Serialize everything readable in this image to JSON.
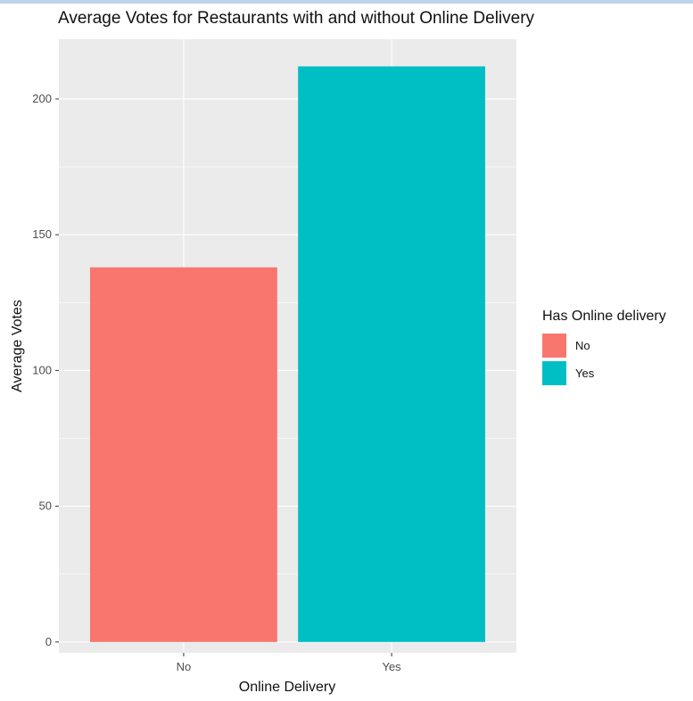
{
  "chart_data": {
    "type": "bar",
    "title": "Average Votes for Restaurants with and without Online Delivery",
    "xlabel": "Online Delivery",
    "ylabel": "Average Votes",
    "categories": [
      "No",
      "Yes"
    ],
    "values": [
      138,
      212
    ],
    "colors": [
      "#F8766D",
      "#00BFC4"
    ],
    "ylim": [
      -4,
      222
    ],
    "yticks": [
      0,
      50,
      100,
      150,
      200
    ],
    "grid": true,
    "legend": {
      "title": "Has Online delivery",
      "placement": "right",
      "entries": [
        "No",
        "Yes"
      ]
    }
  }
}
